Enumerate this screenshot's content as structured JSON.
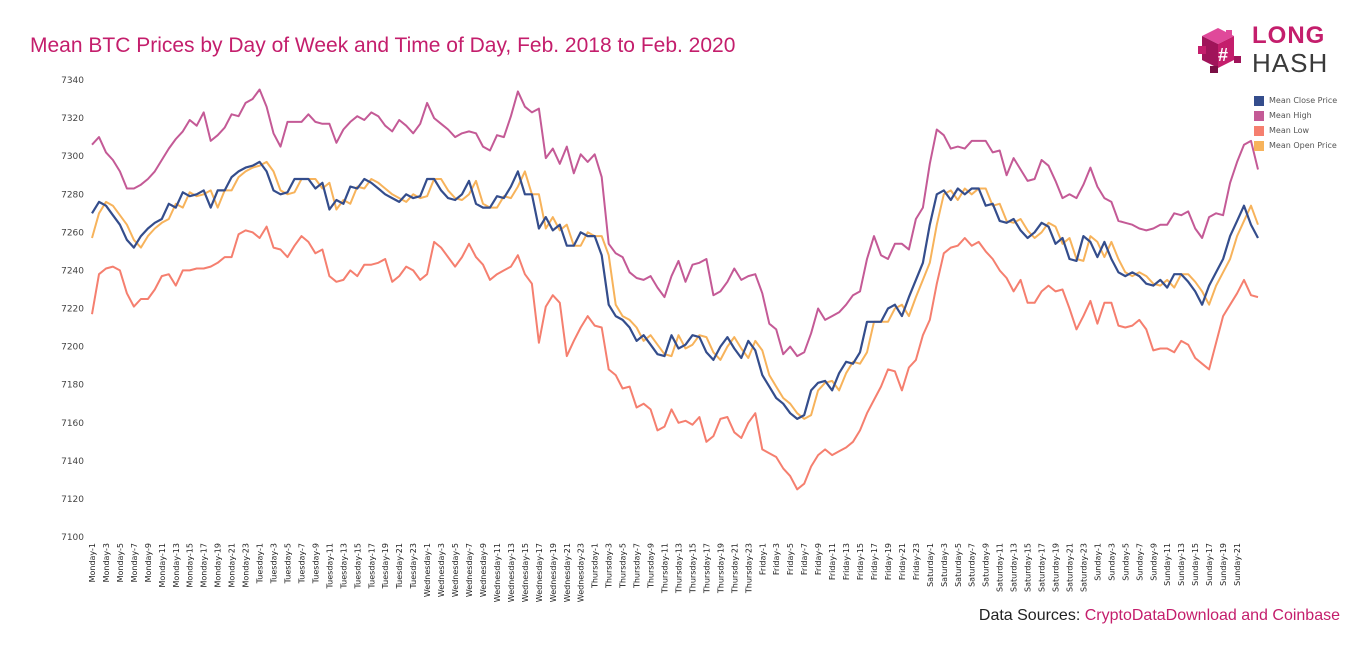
{
  "title": "Mean BTC Prices by Day of Week and Time of Day, Feb. 2018 to Feb. 2020",
  "logo": {
    "line1": "LONG",
    "line2": "HASH",
    "mark_glyph": "#",
    "icon": "longhash-cube-logo-icon"
  },
  "source": {
    "prefix": "Data Sources:",
    "links": "CryptoDataDownload and Coinbase"
  },
  "colors": {
    "close": "#344d8c",
    "high": "#c45a96",
    "low": "#f57f6f",
    "open": "#f7b35b",
    "title": "#c41e6c"
  },
  "chart_data": {
    "type": "line",
    "title": "Mean BTC Prices by Day of Week and Time of Day, Feb. 2018 to Feb. 2020",
    "xlabel": "",
    "ylabel": "",
    "ylim": [
      7100,
      7340
    ],
    "yticks": [
      7100,
      7120,
      7140,
      7160,
      7180,
      7200,
      7220,
      7240,
      7260,
      7280,
      7300,
      7320,
      7340
    ],
    "grid": false,
    "legend_position": "top-right",
    "x_tick_labels": [
      "Monday-1",
      "Monday-3",
      "Monday-5",
      "Monday-7",
      "Monday-9",
      "Monday-11",
      "Monday-13",
      "Monday-15",
      "Monday-17",
      "Monday-19",
      "Monday-21",
      "Monday-23",
      "Tuesday-1",
      "Tuesday-3",
      "Tuesday-5",
      "Tuesday-7",
      "Tuesday-9",
      "Tuesday-11",
      "Tuesday-13",
      "Tuesday-15",
      "Tuesday-17",
      "Tuesday-19",
      "Tuesday-21",
      "Tuesday-23",
      "Wednesday-1",
      "Wednesday-3",
      "Wednesday-5",
      "Wednesday-7",
      "Wednesday-9",
      "Wednesday-11",
      "Wednesday-13",
      "Wednesday-15",
      "Wednesday-17",
      "Wednesday-19",
      "Wednesday-21",
      "Wednesday-23",
      "Thursday-1",
      "Thursday-3",
      "Thursday-5",
      "Thursday-7",
      "Thursday-9",
      "Thursday-11",
      "Thursday-13",
      "Thursday-15",
      "Thursday-17",
      "Thursday-19",
      "Thursday-21",
      "Thursday-23",
      "Friday-1",
      "Friday-3",
      "Friday-5",
      "Friday-7",
      "Friday-9",
      "Friday-11",
      "Friday-13",
      "Friday-15",
      "Friday-17",
      "Friday-19",
      "Friday-21",
      "Friday-23",
      "Saturday-1",
      "Saturday-3",
      "Saturday-5",
      "Saturday-7",
      "Saturday-9",
      "Saturday-11",
      "Saturday-13",
      "Saturday-15",
      "Saturday-17",
      "Saturday-19",
      "Saturday-21",
      "Saturday-23",
      "Sunday-1",
      "Sunday-3",
      "Sunday-5",
      "Sunday-7",
      "Sunday-9",
      "Sunday-11",
      "Sunday-13",
      "Sunday-15",
      "Sunday-17",
      "Sunday-19",
      "Sunday-21"
    ],
    "series": [
      {
        "name": "Mean Close Price",
        "values": [
          7270,
          7276,
          7274,
          7269,
          7264,
          7256,
          7252,
          7258,
          7262,
          7265,
          7267,
          7275,
          7273,
          7281,
          7279,
          7280,
          7282,
          7273,
          7282,
          7282,
          7289,
          7292,
          7294,
          7295,
          7297,
          7292,
          7282,
          7280,
          7281,
          7288,
          7288,
          7288,
          7283,
          7286,
          7272,
          7277,
          7275,
          7284,
          7283,
          7288,
          7286,
          7283,
          7280,
          7278,
          7276,
          7280,
          7278,
          7279,
          7288,
          7288,
          7282,
          7278,
          7277,
          7280,
          7287,
          7275,
          7273,
          7273,
          7279,
          7278,
          7284,
          7292,
          7280,
          7280,
          7262,
          7268,
          7261,
          7264,
          7253,
          7253,
          7260,
          7258,
          7258,
          7248,
          7222,
          7216,
          7214,
          7210,
          7203,
          7206,
          7201,
          7196,
          7195,
          7206,
          7199,
          7201,
          7206,
          7205,
          7197,
          7193,
          7200,
          7205,
          7199,
          7194,
          7203,
          7198,
          7185,
          7179,
          7173,
          7170,
          7165,
          7162,
          7164,
          7177,
          7181,
          7182,
          7177,
          7186,
          7192,
          7191,
          7197,
          7213,
          7213,
          7213,
          7220,
          7222,
          7216,
          7226,
          7235,
          7244,
          7264,
          7280,
          7282,
          7277,
          7283,
          7280,
          7283,
          7283,
          7274,
          7275,
          7266,
          7265,
          7267,
          7261,
          7257,
          7260,
          7265,
          7263,
          7254,
          7257,
          7246,
          7245,
          7258,
          7255,
          7247,
          7255,
          7246,
          7239,
          7237,
          7239,
          7237,
          7233,
          7232,
          7235,
          7231,
          7238,
          7238,
          7234,
          7229,
          7222,
          7232,
          7239,
          7246,
          7258,
          7266,
          7274,
          7264,
          7257
        ]
      },
      {
        "name": "Mean High",
        "values": [
          7306,
          7310,
          7302,
          7298,
          7292,
          7283,
          7283,
          7285,
          7288,
          7292,
          7298,
          7304,
          7309,
          7313,
          7319,
          7316,
          7323,
          7308,
          7311,
          7315,
          7322,
          7321,
          7328,
          7330,
          7335,
          7326,
          7312,
          7305,
          7318,
          7318,
          7318,
          7322,
          7318,
          7317,
          7317,
          7307,
          7314,
          7318,
          7321,
          7319,
          7323,
          7321,
          7316,
          7313,
          7319,
          7316,
          7312,
          7317,
          7328,
          7320,
          7317,
          7314,
          7310,
          7312,
          7313,
          7312,
          7305,
          7303,
          7311,
          7310,
          7321,
          7334,
          7326,
          7323,
          7325,
          7299,
          7304,
          7296,
          7305,
          7291,
          7301,
          7297,
          7301,
          7289,
          7254,
          7249,
          7247,
          7239,
          7236,
          7235,
          7237,
          7231,
          7226,
          7237,
          7245,
          7234,
          7243,
          7244,
          7246,
          7227,
          7229,
          7234,
          7241,
          7235,
          7237,
          7238,
          7228,
          7212,
          7209,
          7196,
          7200,
          7195,
          7197,
          7207,
          7220,
          7214,
          7216,
          7218,
          7222,
          7227,
          7229,
          7246,
          7258,
          7248,
          7246,
          7254,
          7254,
          7251,
          7267,
          7273,
          7296,
          7314,
          7311,
          7304,
          7305,
          7304,
          7308,
          7308,
          7308,
          7302,
          7303,
          7290,
          7299,
          7293,
          7287,
          7288,
          7298,
          7295,
          7287,
          7278,
          7280,
          7278,
          7285,
          7294,
          7284,
          7278,
          7276,
          7266,
          7265,
          7264,
          7262,
          7261,
          7262,
          7264,
          7264,
          7270,
          7269,
          7271,
          7262,
          7257,
          7268,
          7270,
          7269,
          7286,
          7297,
          7306,
          7308,
          7293
        ]
      },
      {
        "name": "Mean Low",
        "values": [
          7217,
          7238,
          7241,
          7242,
          7240,
          7228,
          7221,
          7225,
          7225,
          7230,
          7237,
          7238,
          7232,
          7240,
          7240,
          7241,
          7241,
          7242,
          7244,
          7247,
          7247,
          7259,
          7261,
          7260,
          7257,
          7263,
          7252,
          7251,
          7247,
          7253,
          7258,
          7255,
          7249,
          7251,
          7237,
          7234,
          7235,
          7240,
          7237,
          7243,
          7243,
          7244,
          7246,
          7234,
          7237,
          7242,
          7240,
          7235,
          7238,
          7255,
          7252,
          7247,
          7242,
          7247,
          7254,
          7247,
          7243,
          7235,
          7238,
          7240,
          7242,
          7248,
          7238,
          7233,
          7202,
          7221,
          7227,
          7223,
          7195,
          7203,
          7210,
          7216,
          7211,
          7210,
          7188,
          7185,
          7178,
          7179,
          7168,
          7170,
          7167,
          7156,
          7158,
          7167,
          7160,
          7161,
          7159,
          7163,
          7150,
          7153,
          7162,
          7163,
          7155,
          7152,
          7160,
          7165,
          7146,
          7144,
          7142,
          7136,
          7132,
          7125,
          7128,
          7137,
          7143,
          7146,
          7143,
          7145,
          7147,
          7150,
          7156,
          7165,
          7172,
          7179,
          7188,
          7187,
          7177,
          7189,
          7193,
          7206,
          7214,
          7233,
          7249,
          7252,
          7253,
          7257,
          7253,
          7255,
          7250,
          7246,
          7240,
          7236,
          7229,
          7235,
          7223,
          7223,
          7229,
          7232,
          7229,
          7230,
          7220,
          7209,
          7216,
          7224,
          7212,
          7223,
          7223,
          7211,
          7210,
          7211,
          7214,
          7209,
          7198,
          7199,
          7199,
          7197,
          7203,
          7201,
          7194,
          7191,
          7188,
          7202,
          7216,
          7222,
          7228,
          7235,
          7227,
          7226
        ]
      },
      {
        "name": "Mean Open Price",
        "values": [
          7257,
          7270,
          7276,
          7274,
          7269,
          7264,
          7256,
          7252,
          7258,
          7262,
          7265,
          7267,
          7275,
          7273,
          7281,
          7279,
          7280,
          7282,
          7273,
          7282,
          7282,
          7289,
          7292,
          7294,
          7295,
          7297,
          7292,
          7282,
          7280,
          7281,
          7288,
          7288,
          7288,
          7283,
          7286,
          7272,
          7277,
          7275,
          7284,
          7283,
          7288,
          7286,
          7283,
          7280,
          7278,
          7276,
          7280,
          7278,
          7279,
          7288,
          7288,
          7282,
          7278,
          7277,
          7280,
          7287,
          7275,
          7273,
          7273,
          7279,
          7278,
          7284,
          7292,
          7280,
          7280,
          7262,
          7268,
          7261,
          7264,
          7253,
          7253,
          7260,
          7258,
          7258,
          7248,
          7222,
          7216,
          7214,
          7210,
          7203,
          7206,
          7201,
          7196,
          7195,
          7206,
          7199,
          7201,
          7206,
          7205,
          7197,
          7193,
          7200,
          7205,
          7199,
          7194,
          7203,
          7198,
          7185,
          7179,
          7173,
          7170,
          7165,
          7162,
          7164,
          7177,
          7181,
          7182,
          7177,
          7186,
          7192,
          7191,
          7197,
          7213,
          7213,
          7213,
          7220,
          7222,
          7216,
          7226,
          7235,
          7244,
          7264,
          7280,
          7282,
          7277,
          7283,
          7280,
          7283,
          7283,
          7274,
          7275,
          7266,
          7265,
          7267,
          7261,
          7257,
          7260,
          7265,
          7263,
          7254,
          7257,
          7246,
          7245,
          7258,
          7255,
          7247,
          7255,
          7246,
          7239,
          7237,
          7239,
          7237,
          7233,
          7232,
          7235,
          7231,
          7238,
          7238,
          7234,
          7229,
          7222,
          7232,
          7239,
          7246,
          7258,
          7266,
          7274,
          7264
        ]
      }
    ]
  }
}
